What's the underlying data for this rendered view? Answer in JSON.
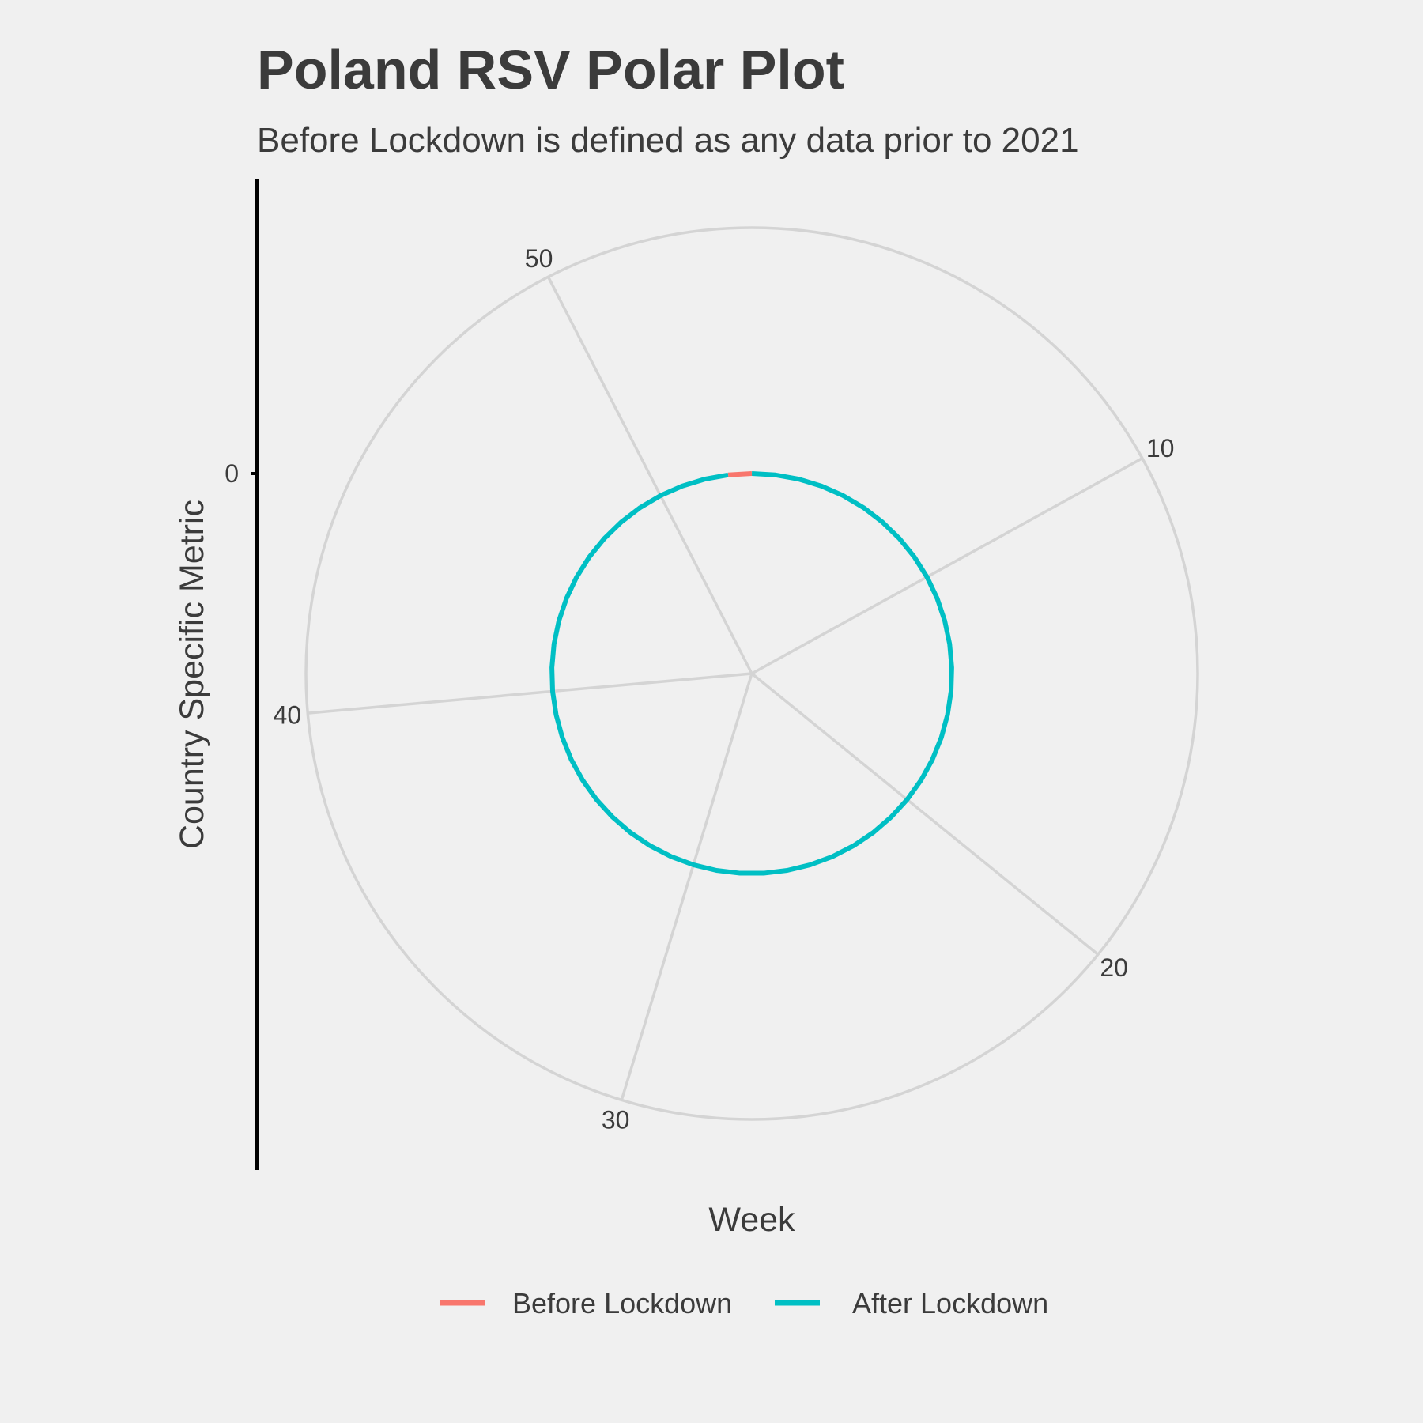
{
  "chart_data": {
    "type": "line",
    "coordinate_system": "polar",
    "title": "Poland RSV Polar Plot",
    "subtitle": "Before Lockdown is defined as any data prior to 2021",
    "xlabel": "Week",
    "ylabel": "Country Specific Metric",
    "x_range": [
      1,
      53
    ],
    "y_ticks": [
      0
    ],
    "theta_ticks": [
      10,
      20,
      30,
      40,
      50
    ],
    "grid": true,
    "legend_position": "bottom",
    "series": [
      {
        "name": "Before Lockdown",
        "color": "#F8766D",
        "weeks": [
          53,
          1
        ],
        "values": [
          0,
          0
        ]
      },
      {
        "name": "After Lockdown",
        "color": "#00BFC4",
        "weeks": [
          1,
          2,
          3,
          4,
          5,
          6,
          7,
          8,
          9,
          10,
          11,
          12,
          13,
          14,
          15,
          16,
          17,
          18,
          19,
          20,
          21,
          22,
          23,
          24,
          25,
          26,
          27,
          28,
          29,
          30,
          31,
          32,
          33,
          34,
          35,
          36,
          37,
          38,
          39,
          40,
          41,
          42,
          43,
          44,
          45,
          46,
          47,
          48,
          49,
          50,
          51,
          52,
          53
        ],
        "values": [
          0,
          0,
          0,
          0,
          0,
          0,
          0,
          0,
          0,
          0,
          0,
          0,
          0,
          0,
          0,
          0,
          0,
          0,
          0,
          0,
          0,
          0,
          0,
          0,
          0,
          0,
          0,
          0,
          0,
          0,
          0,
          0,
          0,
          0,
          0,
          0,
          0,
          0,
          0,
          0,
          0,
          0,
          0,
          0,
          0,
          0,
          0,
          0,
          0,
          0,
          0,
          0,
          0
        ]
      }
    ]
  }
}
